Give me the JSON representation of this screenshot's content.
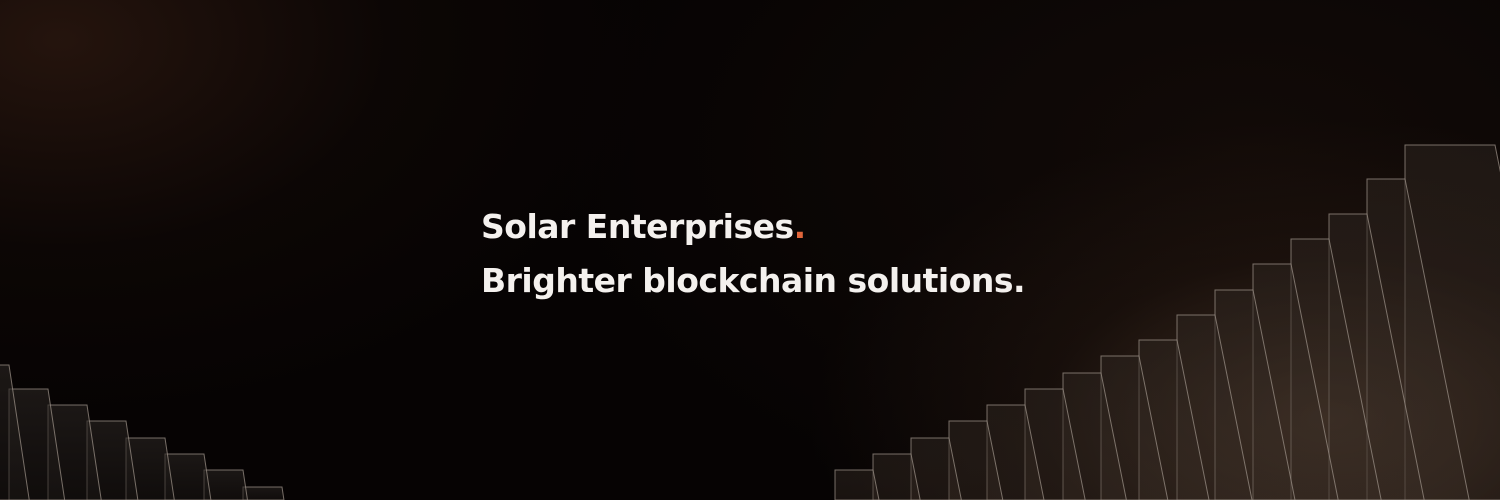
{
  "banner": {
    "company_name": "Solar Enterprises",
    "company_dot": ".",
    "tagline": "Brighter blockchain solutions."
  },
  "colors": {
    "background": "#060303",
    "text": "#f4f1ee",
    "accent": "#e0653a",
    "stair_outline": "#9a8f86"
  }
}
